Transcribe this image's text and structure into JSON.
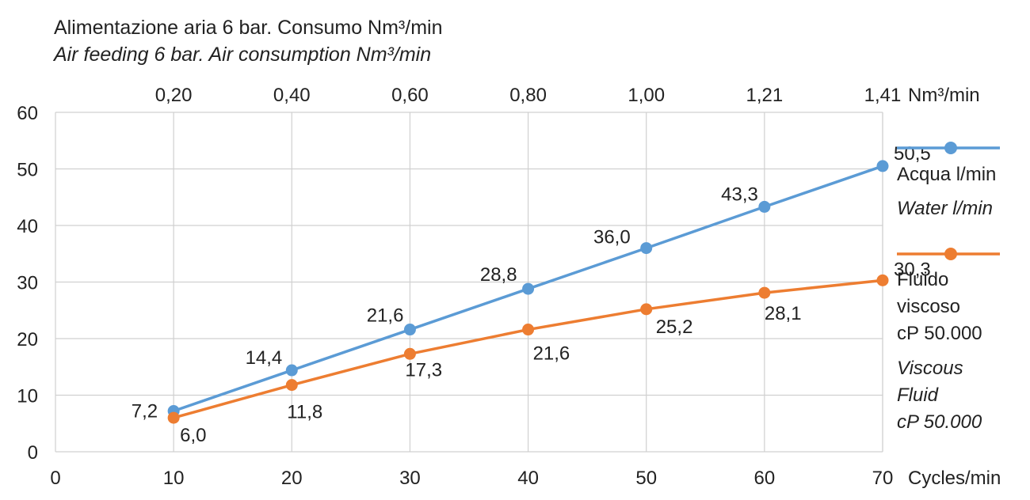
{
  "title": {
    "line1": "Alimentazione aria 6 bar. Consumo Nm³/min",
    "line2": "Air feeding 6 bar. Air consumption Nm³/min"
  },
  "legend": {
    "water_it": "Acqua l/min",
    "water_en": "Water l/min",
    "viscous_it_1": "Fluido",
    "viscous_it_2": "viscoso",
    "viscous_it_3": "cP 50.000",
    "viscous_en_1": "Viscous",
    "viscous_en_2": "Fluid",
    "viscous_en_3": "cP 50.000"
  },
  "colors": {
    "water": "#5b9bd5",
    "viscous": "#ed7d31",
    "grid": "#d0d0d0",
    "text": "#222222"
  },
  "chart_data": {
    "type": "line",
    "xlabel": "Cycles/min",
    "x2label": "Nm³/min",
    "x": [
      10,
      20,
      30,
      40,
      50,
      60,
      70
    ],
    "xlim": [
      0,
      70
    ],
    "ylim": [
      0,
      60
    ],
    "x_ticks": [
      "0",
      "10",
      "20",
      "30",
      "40",
      "50",
      "60",
      "70"
    ],
    "y_ticks": [
      "0",
      "10",
      "20",
      "30",
      "40",
      "50",
      "60"
    ],
    "top_axis_ticks": [
      "0,20",
      "0,40",
      "0,60",
      "0,80",
      "1,00",
      "1,21",
      "1,41"
    ],
    "grid": true,
    "legend_position": "right",
    "series": [
      {
        "name": "Acqua l/min / Water l/min",
        "color_key": "water",
        "values": [
          7.2,
          14.4,
          21.6,
          28.8,
          36.0,
          43.3,
          50.5
        ],
        "labels": [
          "7,2",
          "14,4",
          "21,6",
          "28,8",
          "36,0",
          "43,3",
          "50,5"
        ],
        "label_side": "above"
      },
      {
        "name": "Fluido viscoso cP 50.000 / Viscous Fluid cP 50.000",
        "color_key": "viscous",
        "values": [
          6.0,
          11.8,
          17.3,
          21.6,
          25.2,
          28.1,
          30.3
        ],
        "labels": [
          "6,0",
          "11,8",
          "17,3",
          "21,6",
          "25,2",
          "28,1",
          "30,3"
        ],
        "label_side": "below"
      }
    ]
  }
}
